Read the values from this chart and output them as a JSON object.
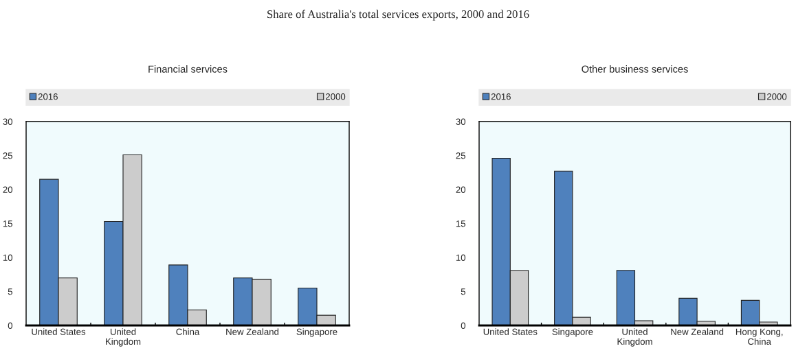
{
  "chart_data": [
    {
      "type": "bar",
      "title": "Share of Australia's total services exports, 2000 and 2016",
      "subtitle": "Financial services",
      "categories": [
        "United States",
        "United\nKingdom",
        "China",
        "New Zealand",
        "Singapore"
      ],
      "series": [
        {
          "name": "2016",
          "color": "#4f81bd",
          "values": [
            21.5,
            15.3,
            8.9,
            7.0,
            5.5
          ]
        },
        {
          "name": "2000",
          "color": "#cccccc",
          "values": [
            7.0,
            25.1,
            2.3,
            6.8,
            1.5
          ]
        }
      ],
      "ylim": [
        0,
        30
      ],
      "yticks": [
        0,
        5,
        10,
        15,
        20,
        25,
        30
      ],
      "legend": "top",
      "grid": false
    },
    {
      "type": "bar",
      "subtitle": "Other business services",
      "categories": [
        "United States",
        "Singapore",
        "United\nKingdom",
        "New Zealand",
        "Hong Kong,\nChina"
      ],
      "series": [
        {
          "name": "2016",
          "color": "#4f81bd",
          "values": [
            24.6,
            22.7,
            8.1,
            4.0,
            3.7
          ]
        },
        {
          "name": "2000",
          "color": "#cccccc",
          "values": [
            8.1,
            1.2,
            0.7,
            0.6,
            0.5
          ]
        }
      ],
      "ylim": [
        0,
        30
      ],
      "yticks": [
        0,
        5,
        10,
        15,
        20,
        25,
        30
      ],
      "legend": "top",
      "grid": false
    }
  ]
}
